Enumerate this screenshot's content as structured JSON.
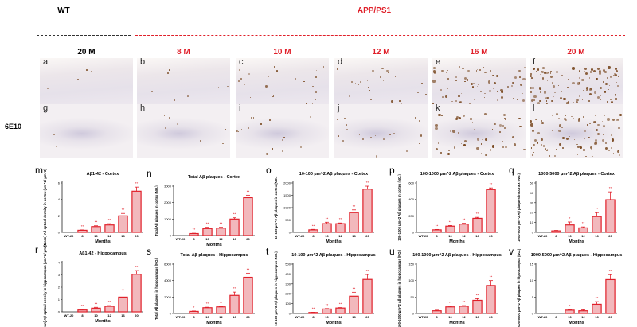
{
  "header": {
    "wt": "WT",
    "app": "APP/PS1",
    "stain": "6E10",
    "ages": [
      "20 M",
      "8 M",
      "10 M",
      "12 M",
      "16 M",
      "20 M"
    ],
    "cortex_panels": [
      "a",
      "b",
      "c",
      "d",
      "e",
      "f"
    ],
    "hippo_panels": [
      "g",
      "h",
      "i",
      "j",
      "k",
      "l"
    ]
  },
  "colors": {
    "wt": "#000000",
    "app": "#e0202a",
    "bar": "#e0202a",
    "bar_fill": "#f2b8bc"
  },
  "chart_data": [
    {
      "id": "m",
      "type": "bar",
      "title": "Aβ1-42 - Cortex",
      "ylabel": "[Mean] Aβ optical density in cortex (μm^2/ μm^2)",
      "xlabel": "Months",
      "categories": [
        "WT-20",
        "8",
        "10",
        "12",
        "16",
        "20"
      ],
      "values": [
        0,
        0.25,
        0.7,
        0.9,
        2.0,
        5.0
      ],
      "errors": [
        0,
        0.05,
        0.1,
        0.15,
        0.3,
        0.5
      ],
      "sig": [
        "",
        "**",
        "**",
        "**",
        "**",
        "**"
      ],
      "ylim": [
        0,
        6
      ],
      "yticks": [
        0,
        2,
        4,
        6
      ]
    },
    {
      "id": "n",
      "type": "bar",
      "title": "Total Aβ plaques - Cortex",
      "ylabel": "Total Aβ plaques in cortex (NO.)",
      "xlabel": "Months",
      "categories": [
        "WT-20",
        "8",
        "10",
        "12",
        "16",
        "20"
      ],
      "values": [
        0,
        120,
        420,
        450,
        1000,
        2300
      ],
      "errors": [
        0,
        20,
        80,
        50,
        80,
        150
      ],
      "sig": [
        "",
        "**",
        "**",
        "**",
        "**",
        "**"
      ],
      "ylim": [
        0,
        3000
      ],
      "yticks": [
        0,
        1000,
        2000,
        3000
      ]
    },
    {
      "id": "o",
      "type": "bar",
      "title": "10-100 μm^2 Aβ plaques - Cortex",
      "ylabel": "10-100 μm^2 Aβ plaques in cortex (NO.)",
      "xlabel": "Months",
      "categories": [
        "WT-20",
        "8",
        "10",
        "12",
        "16",
        "20"
      ],
      "values": [
        0,
        100,
        350,
        350,
        800,
        1750
      ],
      "errors": [
        0,
        20,
        60,
        30,
        110,
        120
      ],
      "sig": [
        "",
        "**",
        "**",
        "**",
        "**",
        "**"
      ],
      "ylim": [
        0,
        2000
      ],
      "yticks": [
        0,
        500,
        1000,
        1500,
        2000
      ]
    },
    {
      "id": "p",
      "type": "bar",
      "title": "100-1000 μm^2 Aβ plaques - Cortex",
      "ylabel": "100-1000 μm^2 Aβ plaques in cortex (NO.)",
      "xlabel": "Months",
      "categories": [
        "WT-20",
        "8",
        "10",
        "12",
        "16",
        "20"
      ],
      "values": [
        0,
        30,
        75,
        100,
        170,
        520
      ],
      "errors": [
        0,
        5,
        8,
        10,
        12,
        20
      ],
      "sig": [
        "",
        "**",
        "**",
        "**",
        "**",
        "**"
      ],
      "ylim": [
        0,
        600
      ],
      "yticks": [
        0,
        200,
        400,
        600
      ]
    },
    {
      "id": "q",
      "type": "bar",
      "title": "1000-5000 μm^2 Aβ plaques - Cortex",
      "ylabel": "1000-5000 μm^2 Aβ plaques in cortex (NO.)",
      "xlabel": "Months",
      "categories": [
        "WT-20",
        "8",
        "10",
        "12",
        "16",
        "20"
      ],
      "values": [
        0,
        1.5,
        7.5,
        4.5,
        16,
        33
      ],
      "errors": [
        0,
        0.5,
        3,
        1,
        4,
        8
      ],
      "sig": [
        "",
        "",
        "*",
        "**",
        "**",
        "**"
      ],
      "ylim": [
        0,
        50
      ],
      "yticks": [
        0,
        10,
        20,
        30,
        40,
        50
      ]
    },
    {
      "id": "r",
      "type": "bar",
      "title": "Aβ1-42 - Hippocampus",
      "ylabel": "[Mean] Aβ optical density in hippocampus (μm^2/ μm^2)",
      "xlabel": "Months",
      "categories": [
        "WT-20",
        "8",
        "10",
        "12",
        "16",
        "20"
      ],
      "values": [
        0,
        0.15,
        0.3,
        0.45,
        1.2,
        3.05
      ],
      "errors": [
        0,
        0.05,
        0.07,
        0.06,
        0.25,
        0.3
      ],
      "sig": [
        "",
        "**",
        "**",
        "**",
        "**",
        "**"
      ],
      "ylim": [
        0,
        4
      ],
      "yticks": [
        0,
        1,
        2,
        3,
        4
      ]
    },
    {
      "id": "s",
      "type": "bar",
      "title": "Total Aβ plaques - Hippocampus",
      "ylabel": "Total Aβ plaques in hippocampus (NO.)",
      "xlabel": "Months",
      "categories": [
        "WT-20",
        "8",
        "10",
        "12",
        "16",
        "20"
      ],
      "values": [
        0,
        250,
        700,
        800,
        2200,
        4400
      ],
      "errors": [
        0,
        50,
        60,
        60,
        400,
        500
      ],
      "sig": [
        "",
        "*",
        "**",
        "**",
        "**",
        "**"
      ],
      "ylim": [
        0,
        6000
      ],
      "yticks": [
        0,
        2000,
        4000,
        6000
      ]
    },
    {
      "id": "t",
      "type": "bar",
      "title": "10-100 μm^2 Aβ plaques - Hippocampus",
      "ylabel": "10-100 μm^2 Aβ plaques in hippocampus (NO.)",
      "xlabel": "Months",
      "categories": [
        "WT-20",
        "8",
        "10",
        "12",
        "16",
        "20"
      ],
      "values": [
        0,
        10,
        45,
        55,
        175,
        345
      ],
      "errors": [
        0,
        3,
        5,
        5,
        40,
        50
      ],
      "sig": [
        "",
        "**",
        "**",
        "**",
        "**",
        "**"
      ],
      "ylim": [
        0,
        500
      ],
      "yticks": [
        0,
        100,
        200,
        300,
        400,
        500
      ]
    },
    {
      "id": "u",
      "type": "bar",
      "title": "100-1000 μm^2 Aβ plaques - Hippocampus",
      "ylabel": "100-1000 μm^2 Aβ plaques in hippocampus (NO.)",
      "xlabel": "Months",
      "categories": [
        "WT-20",
        "8",
        "10",
        "12",
        "16",
        "20"
      ],
      "values": [
        0,
        8,
        20,
        22,
        40,
        85
      ],
      "errors": [
        0,
        2,
        2,
        2,
        5,
        15
      ],
      "sig": [
        "",
        "",
        "**",
        "**",
        "**",
        "**"
      ],
      "ylim": [
        0,
        150
      ],
      "yticks": [
        0,
        50,
        100,
        150
      ]
    },
    {
      "id": "v",
      "type": "bar",
      "title": "1000-5000 μm^2 Aβ plaques - Hippocampus",
      "ylabel": "1000-5000 μm^2 Aβ plaques in hippocampus (NO.)",
      "xlabel": "Months",
      "categories": [
        "WT-20",
        "8",
        "10",
        "12",
        "16",
        "20"
      ],
      "values": [
        0,
        0,
        1,
        0.8,
        2.8,
        10.3
      ],
      "errors": [
        0,
        0,
        0.2,
        0.3,
        0.8,
        1.5
      ],
      "sig": [
        "",
        "",
        "*",
        "",
        "**",
        "**"
      ],
      "ylim": [
        0,
        15
      ],
      "yticks": [
        0,
        5,
        10,
        15
      ]
    }
  ]
}
